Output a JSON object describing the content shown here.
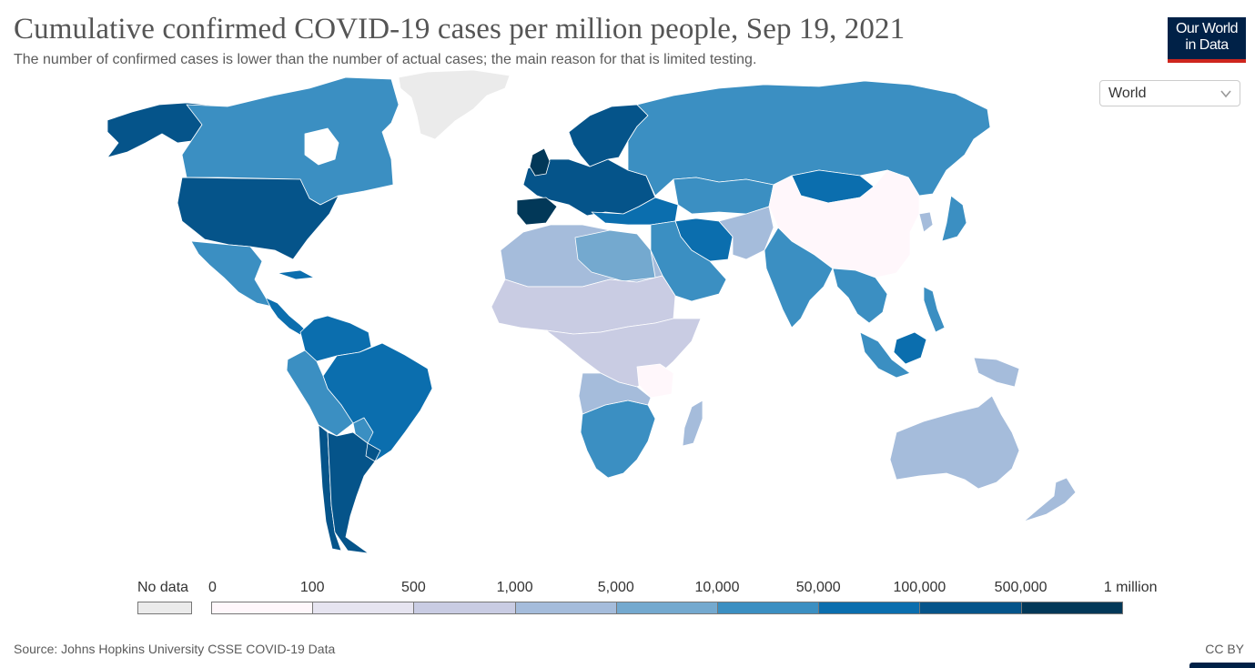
{
  "header": {
    "title": "Cumulative confirmed COVID-19 cases per million people, Sep 19, 2021",
    "subtitle": "The number of confirmed cases is lower than the number of actual cases; the main reason for that is limited testing."
  },
  "logo": {
    "line1": "Our World",
    "line2": "in Data"
  },
  "region_selector": {
    "selected": "World"
  },
  "legend": {
    "no_data_label": "No data",
    "no_data_color": "#ebebeb",
    "bins": [
      {
        "from": "0",
        "to": "100",
        "color": "#fff7fb"
      },
      {
        "from": "100",
        "to": "500",
        "color": "#e6e4f0"
      },
      {
        "from": "500",
        "to": "1,000",
        "color": "#c9cce3"
      },
      {
        "from": "1,000",
        "to": "5,000",
        "color": "#a5bcdb"
      },
      {
        "from": "5,000",
        "to": "10,000",
        "color": "#74a9cf"
      },
      {
        "from": "10,000",
        "to": "50,000",
        "color": "#3b8fc2"
      },
      {
        "from": "50,000",
        "to": "100,000",
        "color": "#0b6eae"
      },
      {
        "from": "100,000",
        "to": "500,000",
        "color": "#05548a"
      },
      {
        "from": "500,000",
        "to": "1 million",
        "color": "#023858"
      }
    ],
    "tick_labels": [
      "0",
      "100",
      "500",
      "1,000",
      "5,000",
      "10,000",
      "50,000",
      "100,000",
      "500,000",
      "1 million"
    ]
  },
  "map_colors": {
    "no_data": "#ebebeb",
    "bin1": "#fff7fb",
    "bin2": "#e6e4f0",
    "bin3": "#c9cce3",
    "bin4": "#a5bcdb",
    "bin5": "#74a9cf",
    "bin6": "#3b8fc2",
    "bin7": "#0b6eae",
    "bin8": "#05548a",
    "bin9": "#023858"
  },
  "footer": {
    "source": "Source: Johns Hopkins University CSSE COVID-19 Data",
    "license": "CC BY"
  }
}
